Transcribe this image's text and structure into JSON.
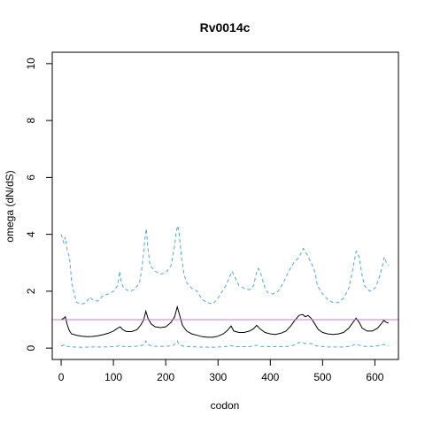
{
  "chart_data": {
    "type": "line",
    "title": "Rv0014c",
    "xlabel": "codon",
    "ylabel": "omega (dN/dS)",
    "xlim": [
      -17,
      645
    ],
    "ylim": [
      -0.4,
      10.4
    ],
    "x_ticks": [
      0,
      100,
      200,
      300,
      400,
      500,
      600
    ],
    "y_ticks": [
      0,
      2,
      4,
      6,
      8,
      10
    ],
    "reference_line": {
      "y": 1,
      "color": "#c77fd0"
    },
    "colors": {
      "estimate": "#000000",
      "interval": "#4aa8de"
    },
    "series": [
      {
        "role": "upper",
        "style": "dashed",
        "points": [
          [
            0,
            4.0
          ],
          [
            5,
            3.7
          ],
          [
            8,
            3.9
          ],
          [
            12,
            3.4
          ],
          [
            16,
            3.2
          ],
          [
            20,
            2.3
          ],
          [
            25,
            1.9
          ],
          [
            30,
            1.6
          ],
          [
            40,
            1.55
          ],
          [
            48,
            1.6
          ],
          [
            55,
            1.8
          ],
          [
            60,
            1.7
          ],
          [
            70,
            1.65
          ],
          [
            80,
            1.85
          ],
          [
            90,
            1.9
          ],
          [
            100,
            2.0
          ],
          [
            108,
            2.2
          ],
          [
            112,
            2.7
          ],
          [
            115,
            2.3
          ],
          [
            120,
            2.1
          ],
          [
            130,
            2.0
          ],
          [
            140,
            2.05
          ],
          [
            150,
            2.3
          ],
          [
            155,
            2.9
          ],
          [
            160,
            3.8
          ],
          [
            163,
            4.2
          ],
          [
            166,
            3.5
          ],
          [
            170,
            2.9
          ],
          [
            180,
            2.7
          ],
          [
            190,
            2.6
          ],
          [
            200,
            2.65
          ],
          [
            210,
            2.9
          ],
          [
            217,
            3.6
          ],
          [
            220,
            4.1
          ],
          [
            223,
            4.3
          ],
          [
            226,
            4.0
          ],
          [
            230,
            3.2
          ],
          [
            235,
            2.6
          ],
          [
            240,
            2.3
          ],
          [
            250,
            2.1
          ],
          [
            260,
            2.0
          ],
          [
            270,
            1.7
          ],
          [
            280,
            1.6
          ],
          [
            290,
            1.55
          ],
          [
            298,
            1.7
          ],
          [
            305,
            1.9
          ],
          [
            315,
            2.2
          ],
          [
            322,
            2.5
          ],
          [
            327,
            2.7
          ],
          [
            332,
            2.5
          ],
          [
            340,
            2.2
          ],
          [
            350,
            2.1
          ],
          [
            360,
            2.05
          ],
          [
            368,
            2.2
          ],
          [
            373,
            2.6
          ],
          [
            377,
            2.8
          ],
          [
            382,
            2.6
          ],
          [
            390,
            2.1
          ],
          [
            395,
            1.95
          ],
          [
            405,
            1.9
          ],
          [
            415,
            2.0
          ],
          [
            425,
            2.3
          ],
          [
            435,
            2.7
          ],
          [
            445,
            3.0
          ],
          [
            455,
            3.2
          ],
          [
            463,
            3.5
          ],
          [
            470,
            3.3
          ],
          [
            478,
            3.0
          ],
          [
            485,
            2.7
          ],
          [
            490,
            2.2
          ],
          [
            500,
            1.9
          ],
          [
            510,
            1.7
          ],
          [
            520,
            1.6
          ],
          [
            530,
            1.6
          ],
          [
            540,
            1.75
          ],
          [
            550,
            2.1
          ],
          [
            558,
            2.8
          ],
          [
            564,
            3.4
          ],
          [
            570,
            3.2
          ],
          [
            575,
            2.6
          ],
          [
            580,
            2.2
          ],
          [
            590,
            2.0
          ],
          [
            600,
            2.1
          ],
          [
            607,
            2.4
          ],
          [
            613,
            2.8
          ],
          [
            618,
            3.2
          ],
          [
            622,
            3.0
          ],
          [
            626,
            2.9
          ]
        ]
      },
      {
        "role": "estimate",
        "style": "solid",
        "points": [
          [
            0,
            1.0
          ],
          [
            5,
            1.05
          ],
          [
            8,
            1.1
          ],
          [
            12,
            0.8
          ],
          [
            16,
            0.6
          ],
          [
            20,
            0.5
          ],
          [
            30,
            0.45
          ],
          [
            40,
            0.42
          ],
          [
            50,
            0.4
          ],
          [
            60,
            0.41
          ],
          [
            70,
            0.43
          ],
          [
            80,
            0.47
          ],
          [
            90,
            0.52
          ],
          [
            100,
            0.6
          ],
          [
            108,
            0.7
          ],
          [
            113,
            0.75
          ],
          [
            118,
            0.65
          ],
          [
            125,
            0.58
          ],
          [
            135,
            0.58
          ],
          [
            145,
            0.65
          ],
          [
            152,
            0.8
          ],
          [
            158,
            1.0
          ],
          [
            162,
            1.3
          ],
          [
            166,
            1.05
          ],
          [
            172,
            0.85
          ],
          [
            180,
            0.75
          ],
          [
            190,
            0.72
          ],
          [
            200,
            0.75
          ],
          [
            210,
            0.9
          ],
          [
            217,
            1.1
          ],
          [
            222,
            1.45
          ],
          [
            226,
            1.2
          ],
          [
            232,
            0.8
          ],
          [
            240,
            0.6
          ],
          [
            250,
            0.5
          ],
          [
            260,
            0.45
          ],
          [
            270,
            0.4
          ],
          [
            280,
            0.38
          ],
          [
            290,
            0.38
          ],
          [
            300,
            0.42
          ],
          [
            310,
            0.5
          ],
          [
            318,
            0.62
          ],
          [
            325,
            0.78
          ],
          [
            330,
            0.6
          ],
          [
            340,
            0.55
          ],
          [
            350,
            0.55
          ],
          [
            360,
            0.6
          ],
          [
            368,
            0.68
          ],
          [
            374,
            0.8
          ],
          [
            380,
            0.68
          ],
          [
            390,
            0.55
          ],
          [
            400,
            0.5
          ],
          [
            410,
            0.48
          ],
          [
            420,
            0.52
          ],
          [
            430,
            0.6
          ],
          [
            440,
            0.8
          ],
          [
            448,
            1.0
          ],
          [
            455,
            1.15
          ],
          [
            462,
            1.18
          ],
          [
            467,
            1.1
          ],
          [
            472,
            1.15
          ],
          [
            478,
            1.05
          ],
          [
            485,
            0.85
          ],
          [
            492,
            0.65
          ],
          [
            500,
            0.55
          ],
          [
            510,
            0.5
          ],
          [
            520,
            0.48
          ],
          [
            530,
            0.5
          ],
          [
            540,
            0.55
          ],
          [
            550,
            0.7
          ],
          [
            558,
            0.9
          ],
          [
            564,
            1.05
          ],
          [
            570,
            0.9
          ],
          [
            576,
            0.7
          ],
          [
            585,
            0.6
          ],
          [
            595,
            0.6
          ],
          [
            605,
            0.7
          ],
          [
            612,
            0.85
          ],
          [
            617,
            0.97
          ],
          [
            622,
            0.9
          ],
          [
            626,
            0.88
          ]
        ]
      },
      {
        "role": "lower",
        "style": "dashed",
        "points": [
          [
            0,
            0.08
          ],
          [
            5,
            0.1
          ],
          [
            8,
            0.12
          ],
          [
            12,
            0.06
          ],
          [
            20,
            0.04
          ],
          [
            40,
            0.03
          ],
          [
            60,
            0.04
          ],
          [
            80,
            0.04
          ],
          [
            100,
            0.05
          ],
          [
            110,
            0.07
          ],
          [
            113,
            0.1
          ],
          [
            118,
            0.06
          ],
          [
            130,
            0.05
          ],
          [
            150,
            0.07
          ],
          [
            158,
            0.12
          ],
          [
            162,
            0.25
          ],
          [
            166,
            0.12
          ],
          [
            175,
            0.07
          ],
          [
            190,
            0.06
          ],
          [
            205,
            0.07
          ],
          [
            215,
            0.1
          ],
          [
            222,
            0.25
          ],
          [
            226,
            0.12
          ],
          [
            235,
            0.06
          ],
          [
            260,
            0.04
          ],
          [
            290,
            0.03
          ],
          [
            315,
            0.05
          ],
          [
            325,
            0.09
          ],
          [
            332,
            0.05
          ],
          [
            360,
            0.05
          ],
          [
            374,
            0.1
          ],
          [
            382,
            0.06
          ],
          [
            400,
            0.05
          ],
          [
            430,
            0.05
          ],
          [
            445,
            0.1
          ],
          [
            455,
            0.2
          ],
          [
            462,
            0.18
          ],
          [
            470,
            0.15
          ],
          [
            478,
            0.16
          ],
          [
            488,
            0.08
          ],
          [
            510,
            0.04
          ],
          [
            540,
            0.04
          ],
          [
            555,
            0.07
          ],
          [
            564,
            0.15
          ],
          [
            570,
            0.1
          ],
          [
            580,
            0.06
          ],
          [
            600,
            0.06
          ],
          [
            612,
            0.1
          ],
          [
            617,
            0.13
          ],
          [
            622,
            0.1
          ],
          [
            626,
            0.09
          ]
        ]
      }
    ]
  }
}
